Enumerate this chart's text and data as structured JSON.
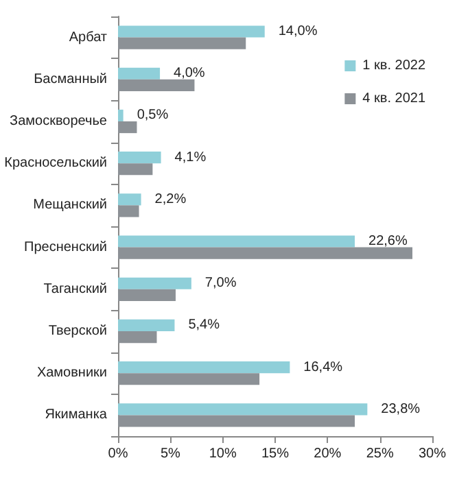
{
  "chart_data": {
    "type": "bar",
    "orientation": "horizontal",
    "categories": [
      "Арбат",
      "Басманный",
      "Замоскворечье",
      "Красносельский",
      "Мещанский",
      "Пресненский",
      "Таганский",
      "Тверской",
      "Хамовники",
      "Якиманка"
    ],
    "series": [
      {
        "name": "1 кв. 2022",
        "color": "#8fcfd9",
        "values": [
          14.0,
          4.0,
          0.5,
          4.1,
          2.2,
          22.6,
          7.0,
          5.4,
          16.4,
          23.8
        ],
        "value_labels": [
          "14,0%",
          "4,0%",
          "0,5%",
          "4,1%",
          "2,2%",
          "22,6%",
          "7,0%",
          "5,4%",
          "16,4%",
          "23,8%"
        ]
      },
      {
        "name": "4 кв. 2021",
        "color": "#8c9196",
        "values": [
          12.2,
          7.3,
          1.8,
          3.3,
          2.0,
          28.1,
          5.5,
          3.7,
          13.5,
          22.6
        ]
      }
    ],
    "xlim": [
      0,
      30
    ],
    "xticks": [
      {
        "value": 0,
        "label": "0%"
      },
      {
        "value": 5,
        "label": "5%"
      },
      {
        "value": 10,
        "label": "10%"
      },
      {
        "value": 15,
        "label": "15%"
      },
      {
        "value": 20,
        "label": "20%"
      },
      {
        "value": 25,
        "label": "25%"
      },
      {
        "value": 30,
        "label": "30%"
      }
    ],
    "legend": "top right",
    "grid": false
  }
}
